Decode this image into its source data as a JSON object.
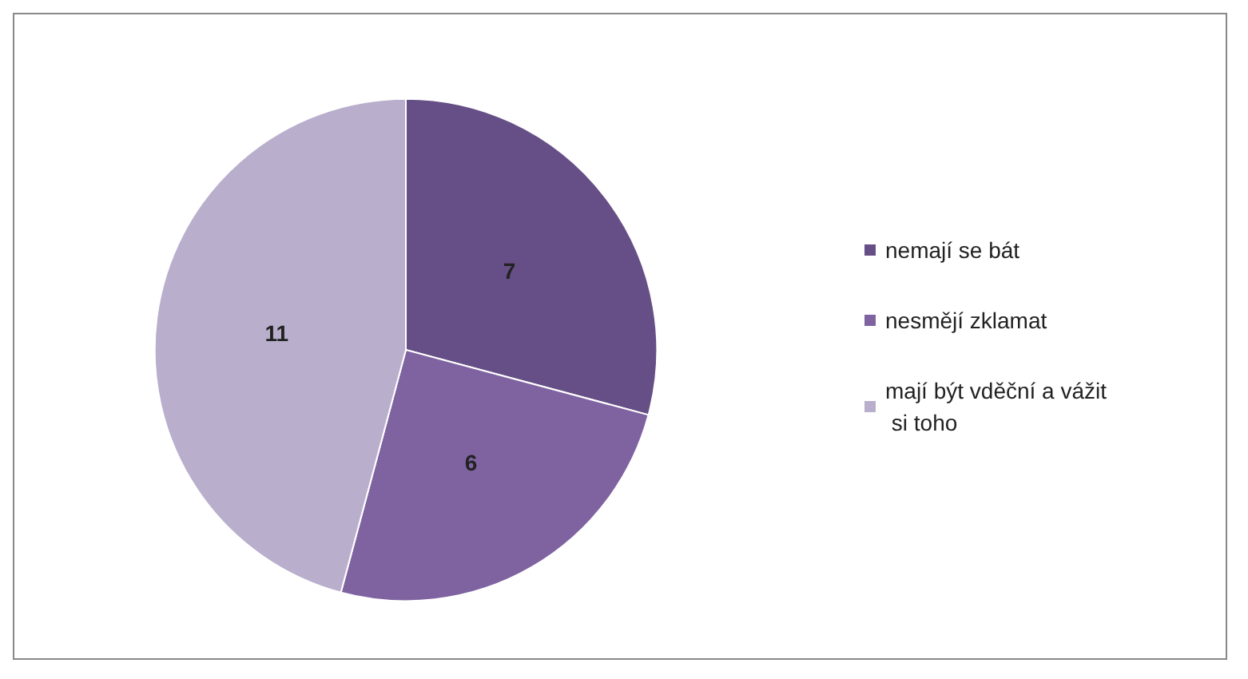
{
  "chart_data": {
    "type": "pie",
    "categories": [
      "nemají se bát",
      "nesmějí zklamat",
      "mají být vděční a vážit si toho"
    ],
    "values": [
      7,
      6,
      11
    ],
    "colors": [
      "#664f86",
      "#7f63a1",
      "#b9afcc"
    ],
    "data_labels": true,
    "legend": "right"
  }
}
